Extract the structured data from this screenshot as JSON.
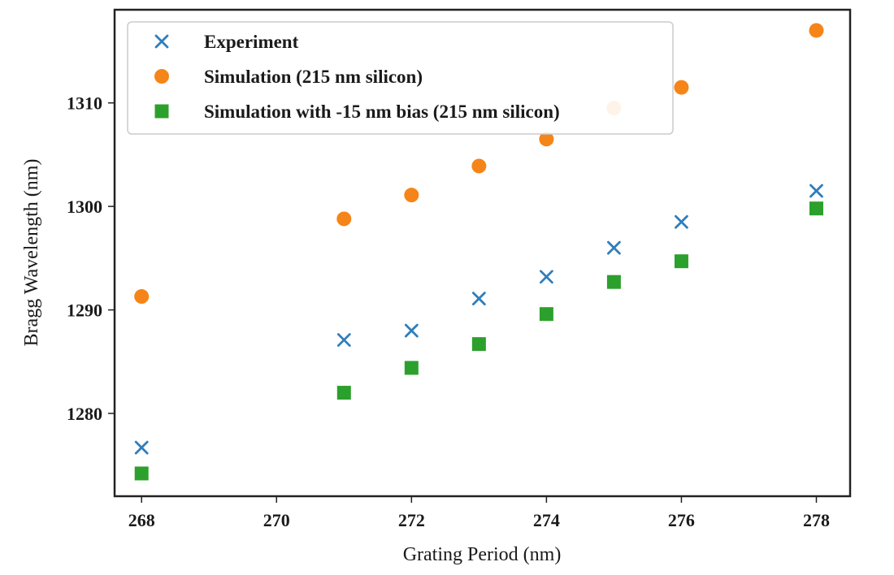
{
  "chart_data": {
    "type": "scatter",
    "title": "",
    "xlabel": "Grating Period (nm)",
    "ylabel": "Bragg Wavelength (nm)",
    "xlim": [
      267.6,
      278.5
    ],
    "ylim": [
      1272.0,
      1319.0
    ],
    "xticks": [
      268,
      270,
      272,
      274,
      276,
      278
    ],
    "yticks": [
      1280,
      1290,
      1300,
      1310
    ],
    "grid": false,
    "legend_position": "top-left",
    "series": [
      {
        "name": "Experiment",
        "marker": "x",
        "color": "#2f7ebc",
        "x": [
          268,
          271,
          272,
          273,
          274,
          275,
          276,
          278
        ],
        "y": [
          1276.7,
          1287.1,
          1288.0,
          1291.1,
          1293.2,
          1296.0,
          1298.5,
          1301.5
        ]
      },
      {
        "name": "Simulation (215 nm silicon)",
        "marker": "circle",
        "color": "#f58518",
        "x": [
          268,
          271,
          272,
          273,
          274,
          275,
          276,
          278
        ],
        "y": [
          1291.3,
          1298.8,
          1301.1,
          1303.9,
          1306.5,
          1309.5,
          1311.5,
          1317.0
        ]
      },
      {
        "name": "Simulation with -15 nm bias (215 nm silicon)",
        "marker": "square",
        "color": "#2ca02c",
        "x": [
          268,
          271,
          272,
          273,
          274,
          275,
          276,
          278
        ],
        "y": [
          1274.2,
          1282.0,
          1284.4,
          1286.7,
          1289.6,
          1292.7,
          1294.7,
          1299.8
        ]
      }
    ]
  }
}
